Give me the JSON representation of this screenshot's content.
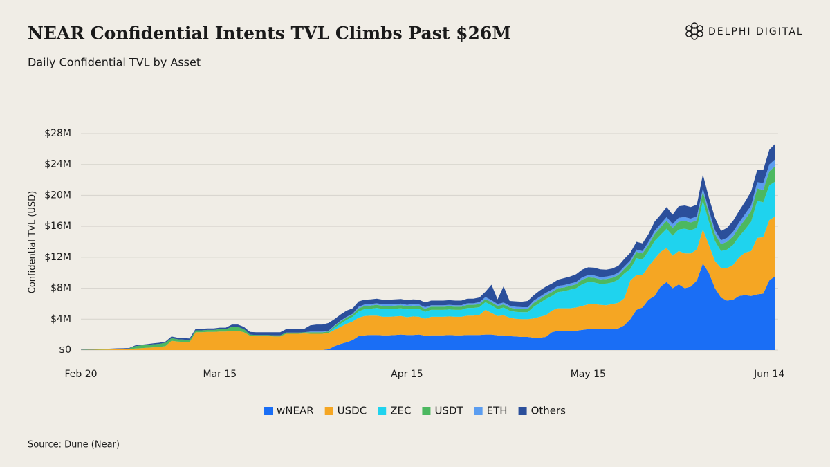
{
  "header": {
    "logo": "DELPHI DIGITAL"
  },
  "chart_data": {
    "type": "stacked_area",
    "title": "NEAR Confidential Intents TVL Climbs Past $26M",
    "subtitle": "Daily Confidential TVL by Asset",
    "y_label": "Confidential TVL (USD)",
    "source": "Source: Dune (Near)",
    "categories": [
      "Feb 20",
      null,
      null,
      null,
      null,
      null,
      null,
      null,
      null,
      null,
      null,
      null,
      null,
      null,
      null,
      null,
      null,
      null,
      null,
      null,
      null,
      null,
      null,
      "Mar 15",
      null,
      null,
      null,
      null,
      null,
      null,
      null,
      null,
      null,
      null,
      null,
      null,
      null,
      null,
      null,
      null,
      null,
      null,
      null,
      null,
      null,
      null,
      null,
      null,
      null,
      null,
      null,
      null,
      null,
      null,
      "Apr 15",
      null,
      null,
      null,
      null,
      null,
      null,
      null,
      null,
      null,
      null,
      null,
      null,
      null,
      null,
      null,
      null,
      null,
      null,
      null,
      null,
      null,
      null,
      null,
      null,
      null,
      null,
      null,
      null,
      null,
      "May 15",
      null,
      null,
      null,
      null,
      null,
      null,
      null,
      null,
      null,
      null,
      null,
      null,
      null,
      null,
      null,
      null,
      null,
      null,
      null,
      null,
      null,
      null,
      null,
      null,
      null,
      null,
      null,
      null,
      null,
      "Jun 14",
      null
    ],
    "ylim": [
      0,
      28
    ],
    "yticks": [
      {
        "value": 0,
        "label": "$0"
      },
      {
        "value": 4,
        "label": "$4M"
      },
      {
        "value": 8,
        "label": "$8M"
      },
      {
        "value": 12,
        "label": "$12M"
      },
      {
        "value": 16,
        "label": "$16M"
      },
      {
        "value": 20,
        "label": "$20M"
      },
      {
        "value": 24,
        "label": "$24M"
      },
      {
        "value": 28,
        "label": "$28M"
      }
    ],
    "grid": true,
    "legend": "bottom",
    "series": [
      {
        "name": "wNEAR",
        "color": "#1a6ef5",
        "values": [
          0,
          0,
          0,
          0,
          0,
          0,
          0,
          0,
          0,
          0,
          0,
          0,
          0,
          0,
          0,
          0,
          0,
          0,
          0,
          0,
          0,
          0,
          0,
          0,
          0,
          0,
          0,
          0,
          0,
          0,
          0,
          0,
          0,
          0,
          0,
          0,
          0,
          0,
          0,
          0,
          0,
          0.1,
          0.5,
          0.8,
          1.0,
          1.3,
          1.8,
          1.9,
          1.95,
          1.95,
          1.9,
          1.9,
          1.95,
          2.0,
          1.95,
          1.95,
          2.0,
          1.85,
          1.9,
          1.9,
          1.9,
          1.95,
          1.9,
          1.9,
          1.95,
          1.95,
          1.95,
          2.0,
          2.0,
          1.9,
          1.9,
          1.8,
          1.75,
          1.7,
          1.7,
          1.6,
          1.6,
          1.7,
          2.3,
          2.5,
          2.5,
          2.5,
          2.5,
          2.6,
          2.7,
          2.75,
          2.75,
          2.7,
          2.75,
          2.8,
          3.2,
          4.0,
          5.2,
          5.5,
          6.5,
          7.0,
          8.2,
          8.8,
          8.0,
          8.5,
          8.0,
          8.2,
          9.0,
          11.2,
          10.0,
          8.0,
          6.8,
          6.4,
          6.5,
          7.0,
          7.1,
          7.0,
          7.2,
          7.3,
          9.0,
          9.6
        ]
      },
      {
        "name": "USDC",
        "color": "#f5a623",
        "values": [
          0.02,
          0.03,
          0.04,
          0.05,
          0.06,
          0.08,
          0.1,
          0.1,
          0.12,
          0.2,
          0.25,
          0.3,
          0.35,
          0.4,
          0.5,
          1.2,
          1.1,
          1.05,
          1.0,
          2.3,
          2.3,
          2.35,
          2.35,
          2.4,
          2.4,
          2.5,
          2.5,
          2.3,
          1.85,
          1.8,
          1.8,
          1.8,
          1.75,
          1.75,
          2.1,
          2.1,
          2.1,
          2.15,
          2.1,
          2.1,
          2.1,
          2.1,
          2.1,
          2.2,
          2.4,
          2.4,
          2.4,
          2.5,
          2.5,
          2.5,
          2.4,
          2.4,
          2.4,
          2.4,
          2.3,
          2.4,
          2.3,
          2.2,
          2.4,
          2.4,
          2.4,
          2.4,
          2.4,
          2.4,
          2.5,
          2.5,
          2.6,
          3.2,
          2.8,
          2.5,
          2.6,
          2.4,
          2.3,
          2.3,
          2.3,
          2.5,
          2.7,
          2.8,
          2.8,
          2.9,
          2.9,
          2.9,
          3.0,
          3.1,
          3.2,
          3.2,
          3.1,
          3.1,
          3.2,
          3.3,
          3.5,
          5.0,
          4.5,
          4.2,
          4.3,
          4.8,
          4.5,
          4.4,
          4.2,
          4.3,
          4.5,
          4.3,
          4.0,
          4.4,
          3.6,
          3.5,
          3.8,
          4.2,
          4.5,
          5.0,
          5.5,
          5.8,
          7.3,
          7.3,
          7.8,
          7.7
        ]
      },
      {
        "name": "ZEC",
        "color": "#1fd3ee",
        "values": [
          0,
          0,
          0,
          0,
          0,
          0,
          0,
          0,
          0,
          0,
          0,
          0,
          0,
          0,
          0,
          0,
          0,
          0,
          0,
          0,
          0,
          0,
          0,
          0,
          0,
          0,
          0,
          0,
          0,
          0,
          0,
          0,
          0,
          0,
          0,
          0,
          0,
          0,
          0,
          0,
          0,
          0,
          0.3,
          0.4,
          0.5,
          0.6,
          0.8,
          0.9,
          0.9,
          1.0,
          1.0,
          1.0,
          1.0,
          1.0,
          1.0,
          1.0,
          1.0,
          0.9,
          0.9,
          0.9,
          0.9,
          0.9,
          0.9,
          0.9,
          1.0,
          1.0,
          1.0,
          1.0,
          1.0,
          0.9,
          1.0,
          0.9,
          0.9,
          0.9,
          0.9,
          1.5,
          1.8,
          2.1,
          1.9,
          2.1,
          2.2,
          2.4,
          2.5,
          2.8,
          2.9,
          2.8,
          2.7,
          2.8,
          2.8,
          3.0,
          3.2,
          1.5,
          2.2,
          2.0,
          2.0,
          2.3,
          2.2,
          2.5,
          2.6,
          2.8,
          3.2,
          3.0,
          2.8,
          3.7,
          3.0,
          2.6,
          2.2,
          2.4,
          2.6,
          2.7,
          3.0,
          3.8,
          4.8,
          4.5,
          4.5,
          4.5
        ]
      },
      {
        "name": "USDT",
        "color": "#4cb860",
        "values": [
          0.02,
          0.03,
          0.03,
          0.04,
          0.05,
          0.05,
          0.06,
          0.06,
          0.08,
          0.3,
          0.35,
          0.35,
          0.4,
          0.4,
          0.45,
          0.35,
          0.3,
          0.3,
          0.3,
          0.25,
          0.25,
          0.25,
          0.25,
          0.3,
          0.3,
          0.5,
          0.5,
          0.4,
          0.15,
          0.15,
          0.15,
          0.15,
          0.15,
          0.15,
          0.15,
          0.15,
          0.15,
          0.15,
          0.2,
          0.2,
          0.2,
          0.2,
          0.2,
          0.3,
          0.3,
          0.3,
          0.4,
          0.4,
          0.4,
          0.4,
          0.4,
          0.4,
          0.4,
          0.4,
          0.4,
          0.4,
          0.4,
          0.4,
          0.4,
          0.4,
          0.4,
          0.4,
          0.4,
          0.4,
          0.4,
          0.4,
          0.4,
          0.4,
          0.4,
          0.4,
          0.4,
          0.4,
          0.4,
          0.4,
          0.4,
          0.5,
          0.5,
          0.5,
          0.5,
          0.5,
          0.5,
          0.5,
          0.5,
          0.6,
          0.6,
          0.6,
          0.6,
          0.6,
          0.6,
          0.6,
          0.6,
          0.8,
          0.8,
          0.8,
          0.8,
          0.9,
          1.0,
          1.0,
          1.0,
          1.0,
          1.0,
          1.0,
          1.0,
          1.2,
          1.0,
          0.9,
          0.9,
          1.0,
          1.1,
          1.2,
          1.3,
          1.4,
          1.6,
          1.6,
          1.8,
          2.0
        ]
      },
      {
        "name": "ETH",
        "color": "#5b9df0",
        "values": [
          0,
          0,
          0,
          0,
          0,
          0,
          0,
          0,
          0,
          0,
          0,
          0,
          0,
          0,
          0,
          0,
          0,
          0,
          0,
          0,
          0,
          0,
          0,
          0,
          0,
          0,
          0,
          0,
          0,
          0,
          0,
          0,
          0,
          0,
          0,
          0,
          0,
          0,
          0.1,
          0.1,
          0.1,
          0.1,
          0.1,
          0.1,
          0.1,
          0.1,
          0.2,
          0.2,
          0.2,
          0.2,
          0.2,
          0.2,
          0.2,
          0.2,
          0.2,
          0.2,
          0.2,
          0.2,
          0.2,
          0.2,
          0.2,
          0.2,
          0.2,
          0.2,
          0.2,
          0.2,
          0.25,
          0.25,
          0.25,
          0.25,
          0.25,
          0.25,
          0.25,
          0.25,
          0.25,
          0.3,
          0.3,
          0.3,
          0.3,
          0.3,
          0.3,
          0.3,
          0.3,
          0.3,
          0.3,
          0.3,
          0.3,
          0.3,
          0.3,
          0.3,
          0.3,
          0.3,
          0.3,
          0.3,
          0.4,
          0.4,
          0.4,
          0.5,
          0.5,
          0.5,
          0.5,
          0.5,
          0.5,
          0.4,
          0.5,
          0.5,
          0.5,
          0.5,
          0.6,
          0.6,
          0.7,
          0.7,
          0.8,
          0.9,
          0.9,
          0.9
        ]
      },
      {
        "name": "Others",
        "color": "#2b4f9b",
        "values": [
          0.02,
          0.03,
          0.03,
          0.04,
          0.05,
          0.06,
          0.06,
          0.07,
          0.07,
          0.1,
          0.1,
          0.12,
          0.12,
          0.15,
          0.15,
          0.2,
          0.2,
          0.2,
          0.2,
          0.2,
          0.2,
          0.2,
          0.2,
          0.2,
          0.2,
          0.3,
          0.3,
          0.3,
          0.35,
          0.35,
          0.35,
          0.35,
          0.4,
          0.4,
          0.45,
          0.45,
          0.45,
          0.45,
          0.8,
          0.9,
          0.9,
          1.0,
          0.8,
          0.8,
          0.8,
          0.7,
          0.7,
          0.6,
          0.6,
          0.6,
          0.6,
          0.6,
          0.6,
          0.6,
          0.6,
          0.6,
          0.6,
          0.6,
          0.6,
          0.6,
          0.6,
          0.6,
          0.6,
          0.6,
          0.6,
          0.6,
          0.6,
          0.7,
          2.0,
          0.6,
          2.1,
          0.6,
          0.7,
          0.7,
          0.8,
          0.7,
          0.8,
          0.8,
          0.8,
          0.8,
          0.9,
          0.9,
          1.0,
          1.0,
          1.0,
          1.0,
          1.0,
          0.9,
          0.9,
          0.9,
          1.0,
          1.0,
          1.0,
          1.0,
          1.0,
          1.2,
          1.2,
          1.3,
          1.2,
          1.5,
          1.5,
          1.5,
          1.5,
          1.8,
          1.6,
          1.6,
          1.2,
          1.3,
          1.4,
          1.5,
          1.6,
          1.8,
          1.6,
          1.7,
          1.9,
          2.0
        ]
      }
    ]
  }
}
